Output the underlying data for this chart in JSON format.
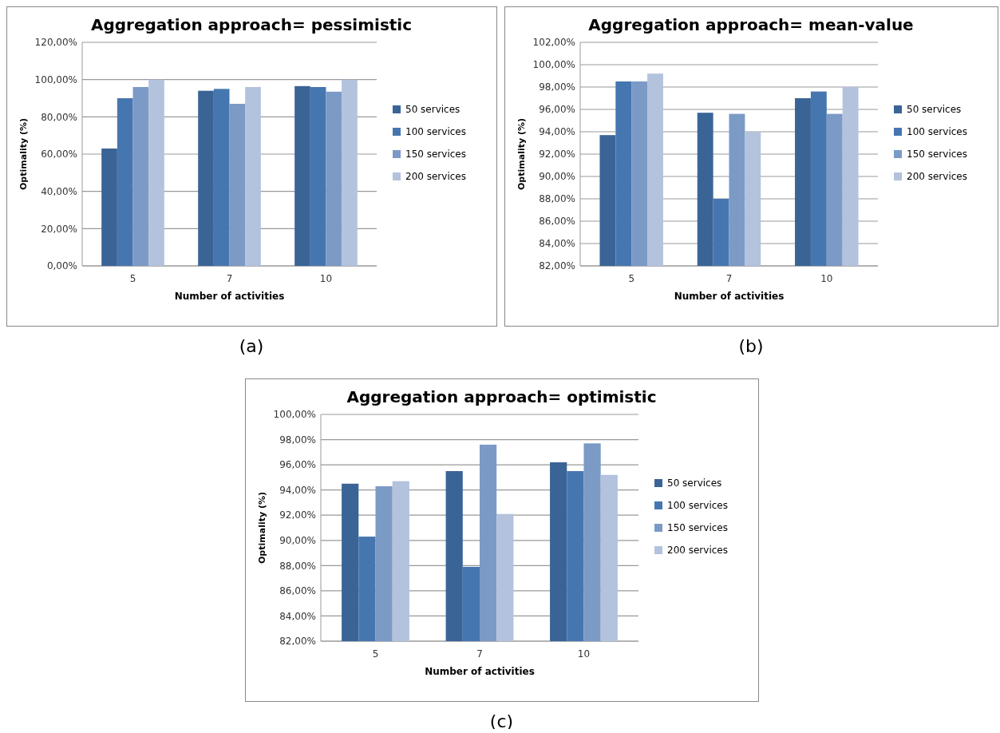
{
  "chart_data": [
    {
      "type": "bar",
      "title": "Aggregation approach= pessimistic",
      "xlabel": "Number of activities",
      "ylabel": "Optimality (%)",
      "categories": [
        "5",
        "7",
        "10"
      ],
      "series": [
        {
          "name": "50 services",
          "color": "#3a6496",
          "values": [
            63,
            94,
            96.5
          ]
        },
        {
          "name": "100 services",
          "color": "#4676b0",
          "values": [
            90,
            95,
            96
          ]
        },
        {
          "name": "150 services",
          "color": "#7b9ac6",
          "values": [
            96,
            87,
            93.5
          ]
        },
        {
          "name": "200 services",
          "color": "#b3c2dd",
          "values": [
            100,
            96,
            100
          ]
        }
      ],
      "ylim": [
        0,
        120
      ],
      "yticks": [
        {
          "value": 0,
          "label": "0,00%"
        },
        {
          "value": 20,
          "label": "20,00%"
        },
        {
          "value": 40,
          "label": "40,00%"
        },
        {
          "value": 60,
          "label": "60,00%"
        },
        {
          "value": 80,
          "label": "80,00%"
        },
        {
          "value": 100,
          "label": "100,00%"
        },
        {
          "value": 120,
          "label": "120,00%"
        }
      ],
      "grid": "y",
      "legend": "right",
      "annotations": [
        "(a)"
      ]
    },
    {
      "type": "bar",
      "title": "Aggregation approach= mean-value",
      "xlabel": "Number of activities",
      "ylabel": "Optimality (%)",
      "categories": [
        "5",
        "7",
        "10"
      ],
      "series": [
        {
          "name": "50 services",
          "color": "#3a6496",
          "values": [
            93.7,
            95.7,
            97
          ]
        },
        {
          "name": "100 services",
          "color": "#4676b0",
          "values": [
            98.5,
            88,
            97.6
          ]
        },
        {
          "name": "150 services",
          "color": "#7b9ac6",
          "values": [
            98.5,
            95.6,
            95.6
          ]
        },
        {
          "name": "200 services",
          "color": "#b3c2dd",
          "values": [
            99.2,
            94,
            98
          ]
        }
      ],
      "ylim": [
        82,
        102
      ],
      "yticks": [
        {
          "value": 82,
          "label": "82,00%"
        },
        {
          "value": 84,
          "label": "84,00%"
        },
        {
          "value": 86,
          "label": "86,00%"
        },
        {
          "value": 88,
          "label": "88,00%"
        },
        {
          "value": 90,
          "label": "90,00%"
        },
        {
          "value": 92,
          "label": "92,00%"
        },
        {
          "value": 94,
          "label": "94,00%"
        },
        {
          "value": 96,
          "label": "96,00%"
        },
        {
          "value": 98,
          "label": "98,00%"
        },
        {
          "value": 100,
          "label": "100,00%"
        },
        {
          "value": 102,
          "label": "102,00%"
        }
      ],
      "grid": "y",
      "legend": "right",
      "annotations": [
        "(b)"
      ]
    },
    {
      "type": "bar",
      "title": "Aggregation approach= optimistic",
      "xlabel": "Number of activities",
      "ylabel": "Optimality (%)",
      "categories": [
        "5",
        "7",
        "10"
      ],
      "series": [
        {
          "name": "50 services",
          "color": "#3a6496",
          "values": [
            94.5,
            95.5,
            96.2
          ]
        },
        {
          "name": "100 services",
          "color": "#4676b0",
          "values": [
            90.3,
            87.9,
            95.5
          ]
        },
        {
          "name": "150 services",
          "color": "#7b9ac6",
          "values": [
            94.3,
            97.6,
            97.7
          ]
        },
        {
          "name": "200 services",
          "color": "#b3c2dd",
          "values": [
            94.7,
            92.1,
            95.2
          ]
        }
      ],
      "ylim": [
        82,
        100
      ],
      "yticks": [
        {
          "value": 82,
          "label": "82,00%"
        },
        {
          "value": 84,
          "label": "84,00%"
        },
        {
          "value": 86,
          "label": "86,00%"
        },
        {
          "value": 88,
          "label": "88,00%"
        },
        {
          "value": 90,
          "label": "90,00%"
        },
        {
          "value": 92,
          "label": "92,00%"
        },
        {
          "value": 94,
          "label": "94,00%"
        },
        {
          "value": 96,
          "label": "96,00%"
        },
        {
          "value": 98,
          "label": "98,00%"
        },
        {
          "value": 100,
          "label": "100,00%"
        }
      ],
      "grid": "y",
      "legend": "right",
      "annotations": [
        "(c)"
      ]
    }
  ]
}
